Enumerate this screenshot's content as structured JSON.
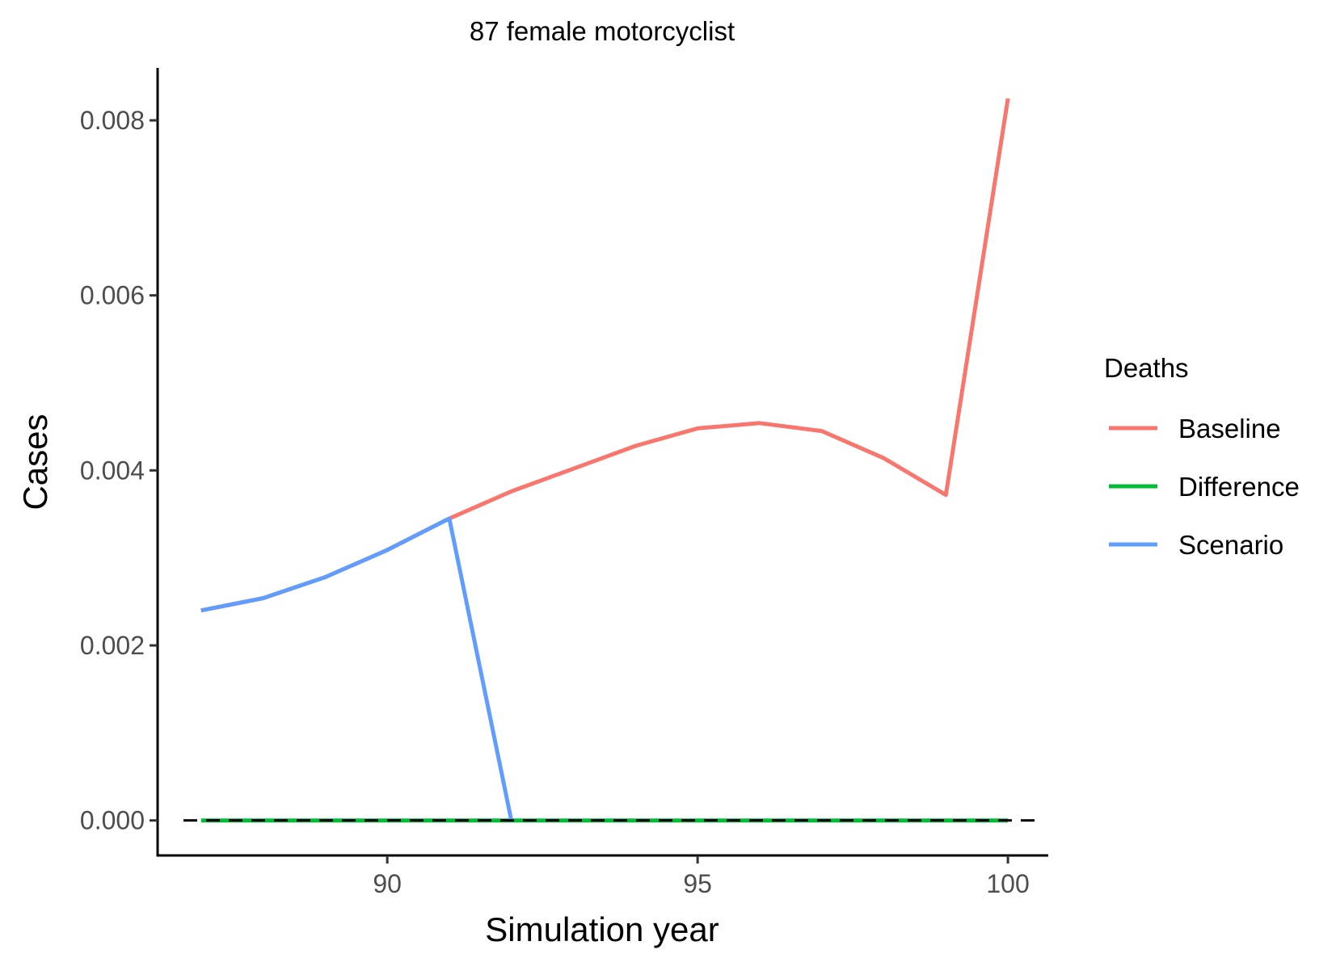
{
  "chart_data": {
    "type": "line",
    "title": "87 female motorcyclist",
    "xlabel": "Simulation year",
    "ylabel": "Cases",
    "xlim": [
      86.3,
      100.65
    ],
    "ylim": [
      -0.0004,
      0.0086
    ],
    "x_ticks": [
      90,
      95,
      100
    ],
    "x_tick_labels": [
      "90",
      "95",
      "100"
    ],
    "y_ticks": [
      0,
      0.002,
      0.004,
      0.006,
      0.008
    ],
    "y_tick_labels": [
      "0.000",
      "0.002",
      "0.004",
      "0.006",
      "0.008"
    ],
    "grid": false,
    "legend": {
      "title": "Deaths",
      "position": "right"
    },
    "reference_line": {
      "y": 0,
      "style": "dashed",
      "color": "#000000"
    },
    "series": [
      {
        "name": "Baseline",
        "color": "#F8766D",
        "x": [
          87,
          88,
          89,
          90,
          91,
          92,
          93,
          94,
          95,
          96,
          97,
          98,
          99,
          100
        ],
        "y": [
          0.0024,
          0.00254,
          0.00278,
          0.00309,
          0.00345,
          0.00376,
          0.00402,
          0.00428,
          0.00448,
          0.00454,
          0.00445,
          0.00414,
          0.00372,
          0.00825
        ]
      },
      {
        "name": "Difference",
        "color": "#00BA38",
        "x": [
          87,
          88,
          89,
          90,
          91,
          92,
          93,
          94,
          95,
          96,
          97,
          98,
          99,
          100
        ],
        "y": [
          0,
          0,
          0,
          0,
          0,
          0,
          0,
          0,
          0,
          0,
          0,
          0,
          0,
          0
        ]
      },
      {
        "name": "Scenario",
        "color": "#619CFF",
        "x": [
          87,
          88,
          89,
          90,
          91,
          92
        ],
        "y": [
          0.0024,
          0.00254,
          0.00278,
          0.00309,
          0.00345,
          0
        ]
      }
    ]
  }
}
